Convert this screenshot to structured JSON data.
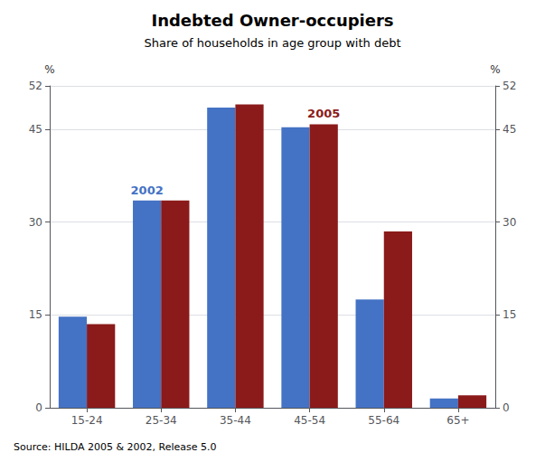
{
  "chart_data": {
    "type": "bar",
    "title": "Indebted Owner-occupiers",
    "subtitle": "Share of households in age group with debt",
    "source": "Source: HILDA 2005 & 2002, Release 5.0",
    "categories": [
      "15-24",
      "25-34",
      "35-44",
      "45-54",
      "55-64",
      "65+"
    ],
    "series": [
      {
        "name": "2002",
        "color": "#4472C4",
        "values": [
          14.7,
          33.5,
          48.5,
          45.3,
          17.5,
          1.5
        ]
      },
      {
        "name": "2005",
        "color": "#8B1A1A",
        "values": [
          13.5,
          33.5,
          49.0,
          45.8,
          28.5,
          2.0
        ]
      }
    ],
    "annotations": [
      {
        "text": "2002",
        "series": "2002",
        "category": "25-34",
        "color": "#4472C4"
      },
      {
        "text": "2005",
        "series": "2005",
        "category": "45-54",
        "color": "#8B1A1A"
      }
    ],
    "ylabel": "%",
    "y2label": "%",
    "ylim": [
      0,
      52
    ],
    "yticks": [
      0,
      15,
      30,
      45
    ],
    "y2lim": [
      0,
      52
    ],
    "y2ticks": [
      0,
      15,
      30,
      45
    ],
    "grid": true
  }
}
